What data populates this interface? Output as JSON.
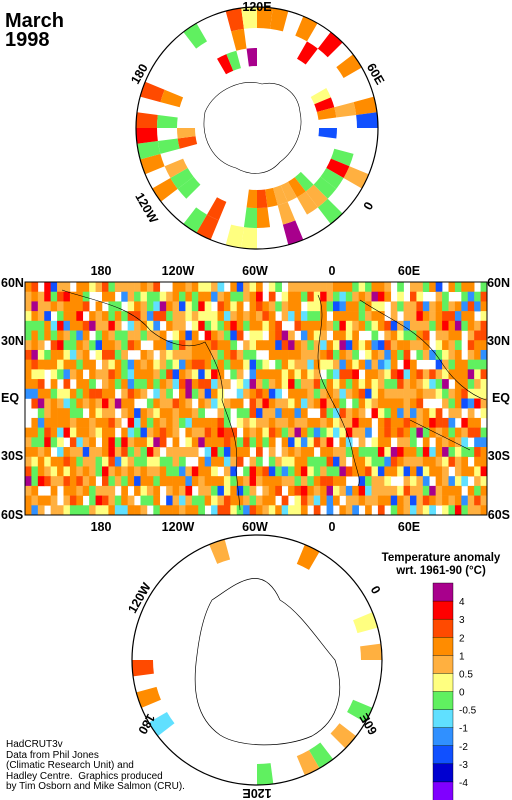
{
  "header": {
    "month": "March",
    "year": "1998"
  },
  "north_polar": {
    "labels": {
      "top": "120E",
      "right": "60E",
      "bottom_right": "0",
      "left": "180",
      "bottom_left": "120W"
    }
  },
  "map": {
    "top_lon_labels": [
      "180",
      "120W",
      "60W",
      "0",
      "60E"
    ],
    "bottom_lon_labels": [
      "180",
      "120W",
      "60W",
      "0",
      "60E"
    ],
    "lat_labels": [
      "60N",
      "30N",
      "EQ",
      "30S",
      "60S"
    ]
  },
  "south_polar": {
    "labels": {
      "top_left": "120W",
      "right": "0",
      "bottom_left": "180",
      "bottom_right": "60E",
      "bottom": "120E"
    }
  },
  "legend": {
    "title_line1": "Temperature anomaly",
    "title_line2": "wrt. 1961-90  (°C)",
    "labels": [
      "4",
      "3",
      "2",
      "1",
      "0.5",
      "0",
      "-0.5",
      "-1",
      "-2",
      "-3",
      "-4"
    ],
    "colors": [
      "#a8008c",
      "#ff0000",
      "#ff4a00",
      "#ff8c00",
      "#ffb040",
      "#ffff80",
      "#60f060",
      "#60e0ff",
      "#3090ff",
      "#1050ff",
      "#0000d0",
      "#8000ff"
    ]
  },
  "credits": {
    "line1": "HadCRUT3v",
    "line2": "Data from Phil Jones",
    "line3": "(Climatic Research Unit) and",
    "line4": "Hadley Centre.  Graphics produced",
    "line5": "by Tim Osborn and Mike Salmon (CRU)."
  }
}
